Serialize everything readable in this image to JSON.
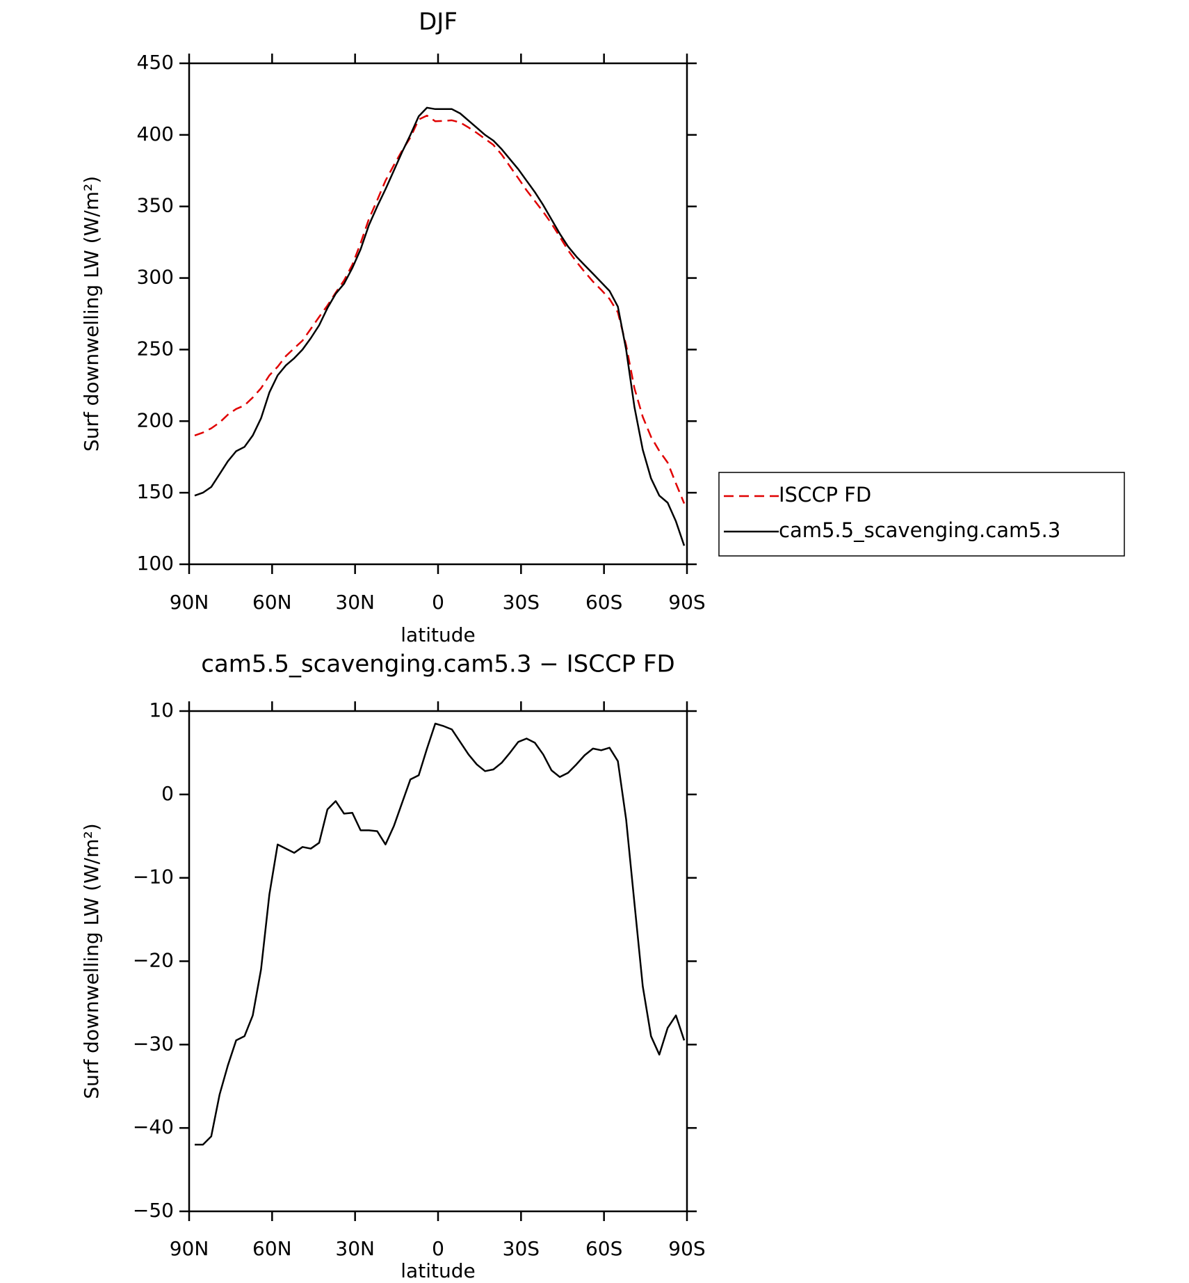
{
  "chart_data": [
    {
      "type": "line",
      "title": "DJF",
      "xlabel": "latitude",
      "ylabel": "Surf downwelling LW (W/m²)",
      "x": [
        88,
        85,
        82,
        79,
        76,
        73,
        70,
        67,
        64,
        61,
        58,
        55,
        52,
        49,
        46,
        43,
        40,
        37,
        34,
        31,
        28,
        25,
        22,
        19,
        16,
        13,
        10,
        7,
        4,
        1,
        -2,
        -5,
        -8,
        -11,
        -14,
        -17,
        -20,
        -23,
        -26,
        -29,
        -32,
        -35,
        -38,
        -41,
        -44,
        -47,
        -50,
        -53,
        -56,
        -59,
        -62,
        -65,
        -68,
        -71,
        -74,
        -77,
        -80,
        -83,
        -86,
        -89
      ],
      "series": [
        {
          "name": "ISCCP FD",
          "color": "#e00000",
          "dashed": true,
          "values": [
            190,
            192,
            195,
            199,
            204.5,
            208.5,
            211,
            216.5,
            223,
            232,
            238,
            245.5,
            251,
            256.3,
            264.5,
            272.8,
            280.8,
            289.8,
            298.3,
            309.2,
            324.3,
            341.3,
            354.4,
            368,
            378.8,
            389,
            398.2,
            410.7,
            413.5,
            409.5,
            409.8,
            410.2,
            408.7,
            405.2,
            401.4,
            397.2,
            393,
            386.2,
            378,
            369.7,
            361.3,
            353.8,
            346.2,
            338.1,
            328.9,
            319.4,
            311.4,
            304.3,
            297.5,
            291.7,
            285.4,
            276,
            253,
            223,
            203,
            189,
            179.2,
            171,
            156.5,
            142.5
          ]
        },
        {
          "name": "cam5.5_scavenging.cam5.3",
          "color": "#000000",
          "dashed": false,
          "values": [
            148,
            150,
            154,
            163,
            172,
            179,
            182,
            190,
            202,
            220,
            232,
            239,
            244,
            250,
            258,
            267,
            279,
            289,
            296,
            307,
            320,
            337,
            350,
            362,
            375,
            388,
            400,
            413,
            419,
            418,
            418,
            418,
            415,
            410,
            405,
            400,
            396,
            390,
            383,
            376,
            368,
            360,
            351,
            341,
            331,
            322,
            315,
            309,
            303,
            297,
            291,
            280,
            250,
            210,
            180,
            160,
            148,
            143,
            130,
            113
          ]
        }
      ],
      "xlim": [
        90,
        -90
      ],
      "xticks": [
        {
          "value": 90,
          "label": "90N"
        },
        {
          "value": 60,
          "label": "60N"
        },
        {
          "value": 30,
          "label": "30N"
        },
        0,
        {
          "value": -30,
          "label": "30S"
        },
        {
          "value": -60,
          "label": "60S"
        },
        {
          "value": -90,
          "label": "90S"
        }
      ],
      "ylim": [
        100,
        450
      ],
      "yticks": [
        100,
        150,
        200,
        250,
        300,
        350,
        400,
        450
      ],
      "legend": "right"
    },
    {
      "type": "line",
      "title": "cam5.5_scavenging.cam5.3 − ISCCP FD",
      "xlabel": "latitude",
      "ylabel": "Surf downwelling LW (W/m²)",
      "x": [
        88,
        85,
        82,
        79,
        76,
        73,
        70,
        67,
        64,
        61,
        58,
        55,
        52,
        49,
        46,
        43,
        40,
        37,
        34,
        31,
        28,
        25,
        22,
        19,
        16,
        13,
        10,
        7,
        4,
        1,
        -2,
        -5,
        -8,
        -11,
        -14,
        -17,
        -20,
        -23,
        -26,
        -29,
        -32,
        -35,
        -38,
        -41,
        -44,
        -47,
        -50,
        -53,
        -56,
        -59,
        -62,
        -65,
        -68,
        -71,
        -74,
        -77,
        -80,
        -83,
        -86,
        -89
      ],
      "values": [
        -42,
        -42,
        -41,
        -36,
        -32.5,
        -29.5,
        -29,
        -26.5,
        -21,
        -12,
        -6,
        -6.5,
        -7,
        -6.3,
        -6.5,
        -5.8,
        -1.8,
        -0.8,
        -2.3,
        -2.2,
        -4.3,
        -4.3,
        -4.4,
        -6,
        -3.8,
        -1,
        1.8,
        2.3,
        5.5,
        8.5,
        8.2,
        7.8,
        6.3,
        4.8,
        3.6,
        2.8,
        3,
        3.8,
        5,
        6.3,
        6.7,
        6.2,
        4.8,
        2.9,
        2.1,
        2.6,
        3.6,
        4.7,
        5.5,
        5.3,
        5.6,
        4,
        -3,
        -13,
        -23,
        -29,
        -31.2,
        -28,
        -26.5,
        -29.5
      ],
      "color": "#000000",
      "xlim": [
        90,
        -90
      ],
      "xticks": [
        {
          "value": 90,
          "label": "90N"
        },
        {
          "value": 60,
          "label": "60N"
        },
        {
          "value": 30,
          "label": "30N"
        },
        0,
        {
          "value": -30,
          "label": "30S"
        },
        {
          "value": -60,
          "label": "60S"
        },
        {
          "value": -90,
          "label": "90S"
        }
      ],
      "ylim": [
        -50,
        10
      ],
      "yticks": [
        {
          "value": -50,
          "label": "−50"
        },
        {
          "value": -40,
          "label": "−40"
        },
        {
          "value": -30,
          "label": "−30"
        },
        {
          "value": -20,
          "label": "−20"
        },
        {
          "value": -10,
          "label": "−10"
        },
        0,
        10
      ]
    }
  ]
}
